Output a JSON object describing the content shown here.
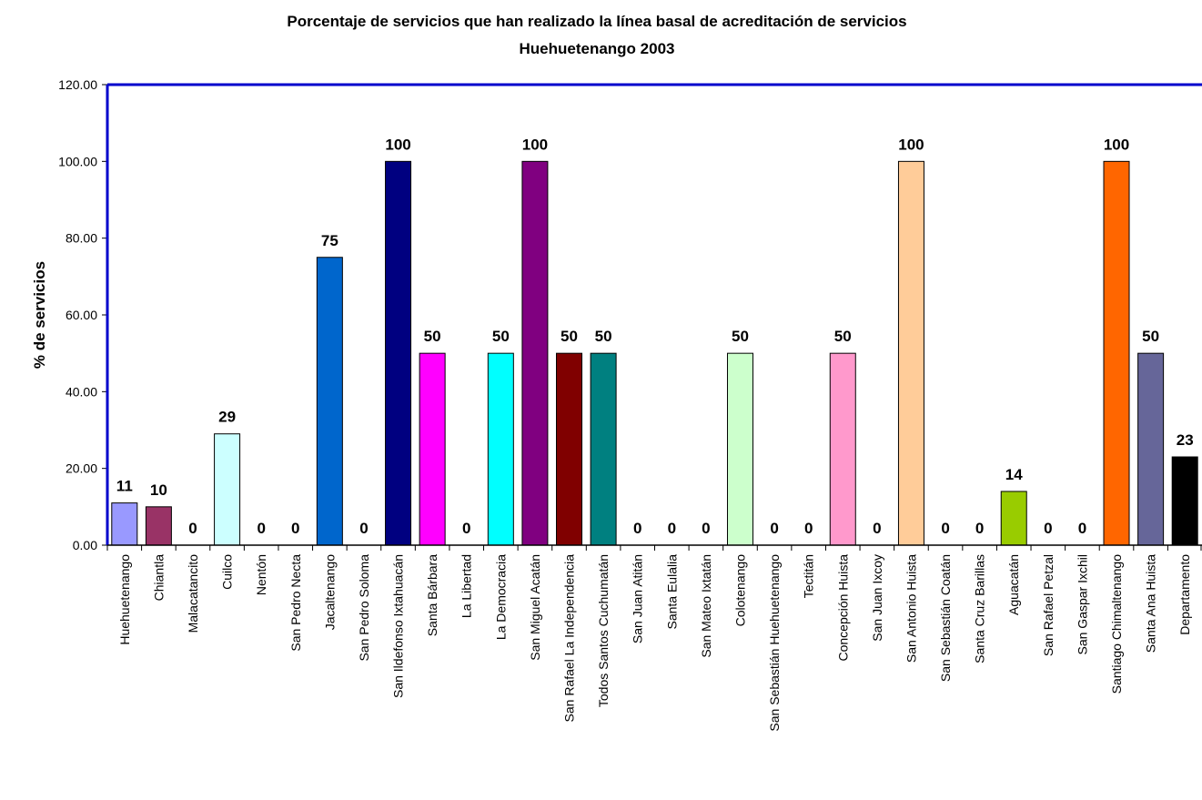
{
  "chart_data": {
    "type": "bar",
    "title": "Porcentaje de servicios que han realizado la línea basal de acreditación de servicios",
    "subtitle": "Huehuetenango 2003",
    "xlabel": "",
    "ylabel": "% de servicios",
    "ylim": [
      0,
      120
    ],
    "yticks": [
      "0.00",
      "20.00",
      "40.00",
      "60.00",
      "80.00",
      "100.00",
      "120.00"
    ],
    "grid": false,
    "categories": [
      "Huehuetenango",
      "Chiantla",
      "Malacatancito",
      "Cuilco",
      "Nentón",
      "San Pedro Necta",
      "Jacaltenango",
      "San Pedro Soloma",
      "San Ildefonso Ixtahuacán",
      "Santa Bárbara",
      "La Libertad",
      "La Democracia",
      "San Miguel Acatán",
      "San Rafael La Independencia",
      "Todos Santos Cuchumatán",
      "San Juan Atitán",
      "Santa Eulalia",
      "San Mateo Ixtatán",
      "Colotenango",
      "San Sebastián Huehuetenango",
      "Tectitán",
      "Concepción Huista",
      "San Juan Ixcoy",
      "San Antonio Huista",
      "San Sebastián Coatán",
      "Santa Cruz Barillas",
      "Aguacatán",
      "San Rafael Petzal",
      "San Gaspar Ixchil",
      "Santiago Chimaltenango",
      "Santa Ana Huista",
      "Departamento"
    ],
    "values": [
      11,
      10,
      0,
      29,
      0,
      0,
      75,
      0,
      100,
      50,
      0,
      50,
      100,
      50,
      50,
      0,
      0,
      0,
      50,
      0,
      0,
      50,
      0,
      100,
      0,
      0,
      14,
      0,
      0,
      100,
      50,
      23
    ],
    "data_labels": [
      "11",
      "10",
      "0",
      "29",
      "0",
      "0",
      "75",
      "0",
      "100",
      "50",
      "0",
      "50",
      "100",
      "50",
      "50",
      "0",
      "0",
      "0",
      "50",
      "0",
      "0",
      "50",
      "0",
      "100",
      "0",
      "0",
      "14",
      "0",
      "0",
      "100",
      "50",
      "23"
    ],
    "bar_colors": [
      "#9999ff",
      "#993366",
      "#ffffcc",
      "#ccffff",
      "#660066",
      "#ff8080",
      "#0066cc",
      "#ccccff",
      "#000080",
      "#ff00ff",
      "#ffff00",
      "#00ffff",
      "#800080",
      "#800000",
      "#008080",
      "#0000ff",
      "#00ccff",
      "#ccffff",
      "#ccffcc",
      "#ffff99",
      "#99ccff",
      "#ff99cc",
      "#cc99ff",
      "#ffcc99",
      "#3366ff",
      "#33cccc",
      "#99cc00",
      "#ffcc00",
      "#ff9900",
      "#ff6600",
      "#666699",
      "#000000"
    ],
    "axis_color": "#0000cc"
  }
}
